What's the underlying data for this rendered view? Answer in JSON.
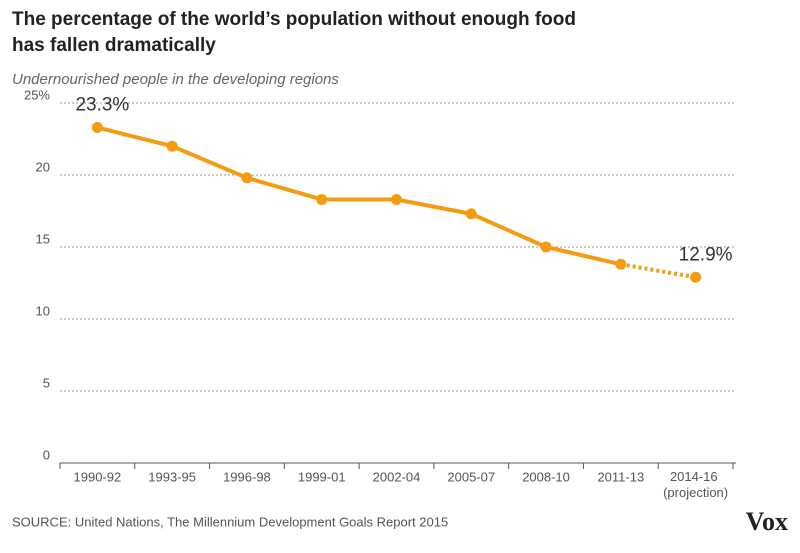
{
  "chart_data": {
    "type": "line",
    "title": [
      "The percentage of the world’s population without enough food",
      "has fallen dramatically"
    ],
    "subtitle": "Undernourished people in the developing regions",
    "categories": [
      "1990-92",
      "1993-95",
      "1996-98",
      "1999-01",
      "2002-04",
      "2005-07",
      "2008-10",
      "2011-13",
      "2014-16 (projection)"
    ],
    "series": [
      {
        "color": "#f39c12",
        "values": [
          23.3,
          22.0,
          19.8,
          18.3,
          18.3,
          17.3,
          15.0,
          13.8,
          12.9
        ],
        "value_labels": [
          "23.3%",
          null,
          null,
          null,
          null,
          null,
          null,
          null,
          "12.9%"
        ],
        "projected": [
          false,
          false,
          false,
          false,
          false,
          false,
          false,
          false,
          true
        ]
      }
    ],
    "ylim": [
      0,
      25
    ],
    "yticks": [
      0,
      5,
      10,
      15,
      20,
      {
        "value": 25,
        "label": "25%"
      }
    ],
    "grid": true,
    "source": "SOURCE: United Nations, The Millennium Development Goals Report 2015",
    "logo": "Vox"
  }
}
